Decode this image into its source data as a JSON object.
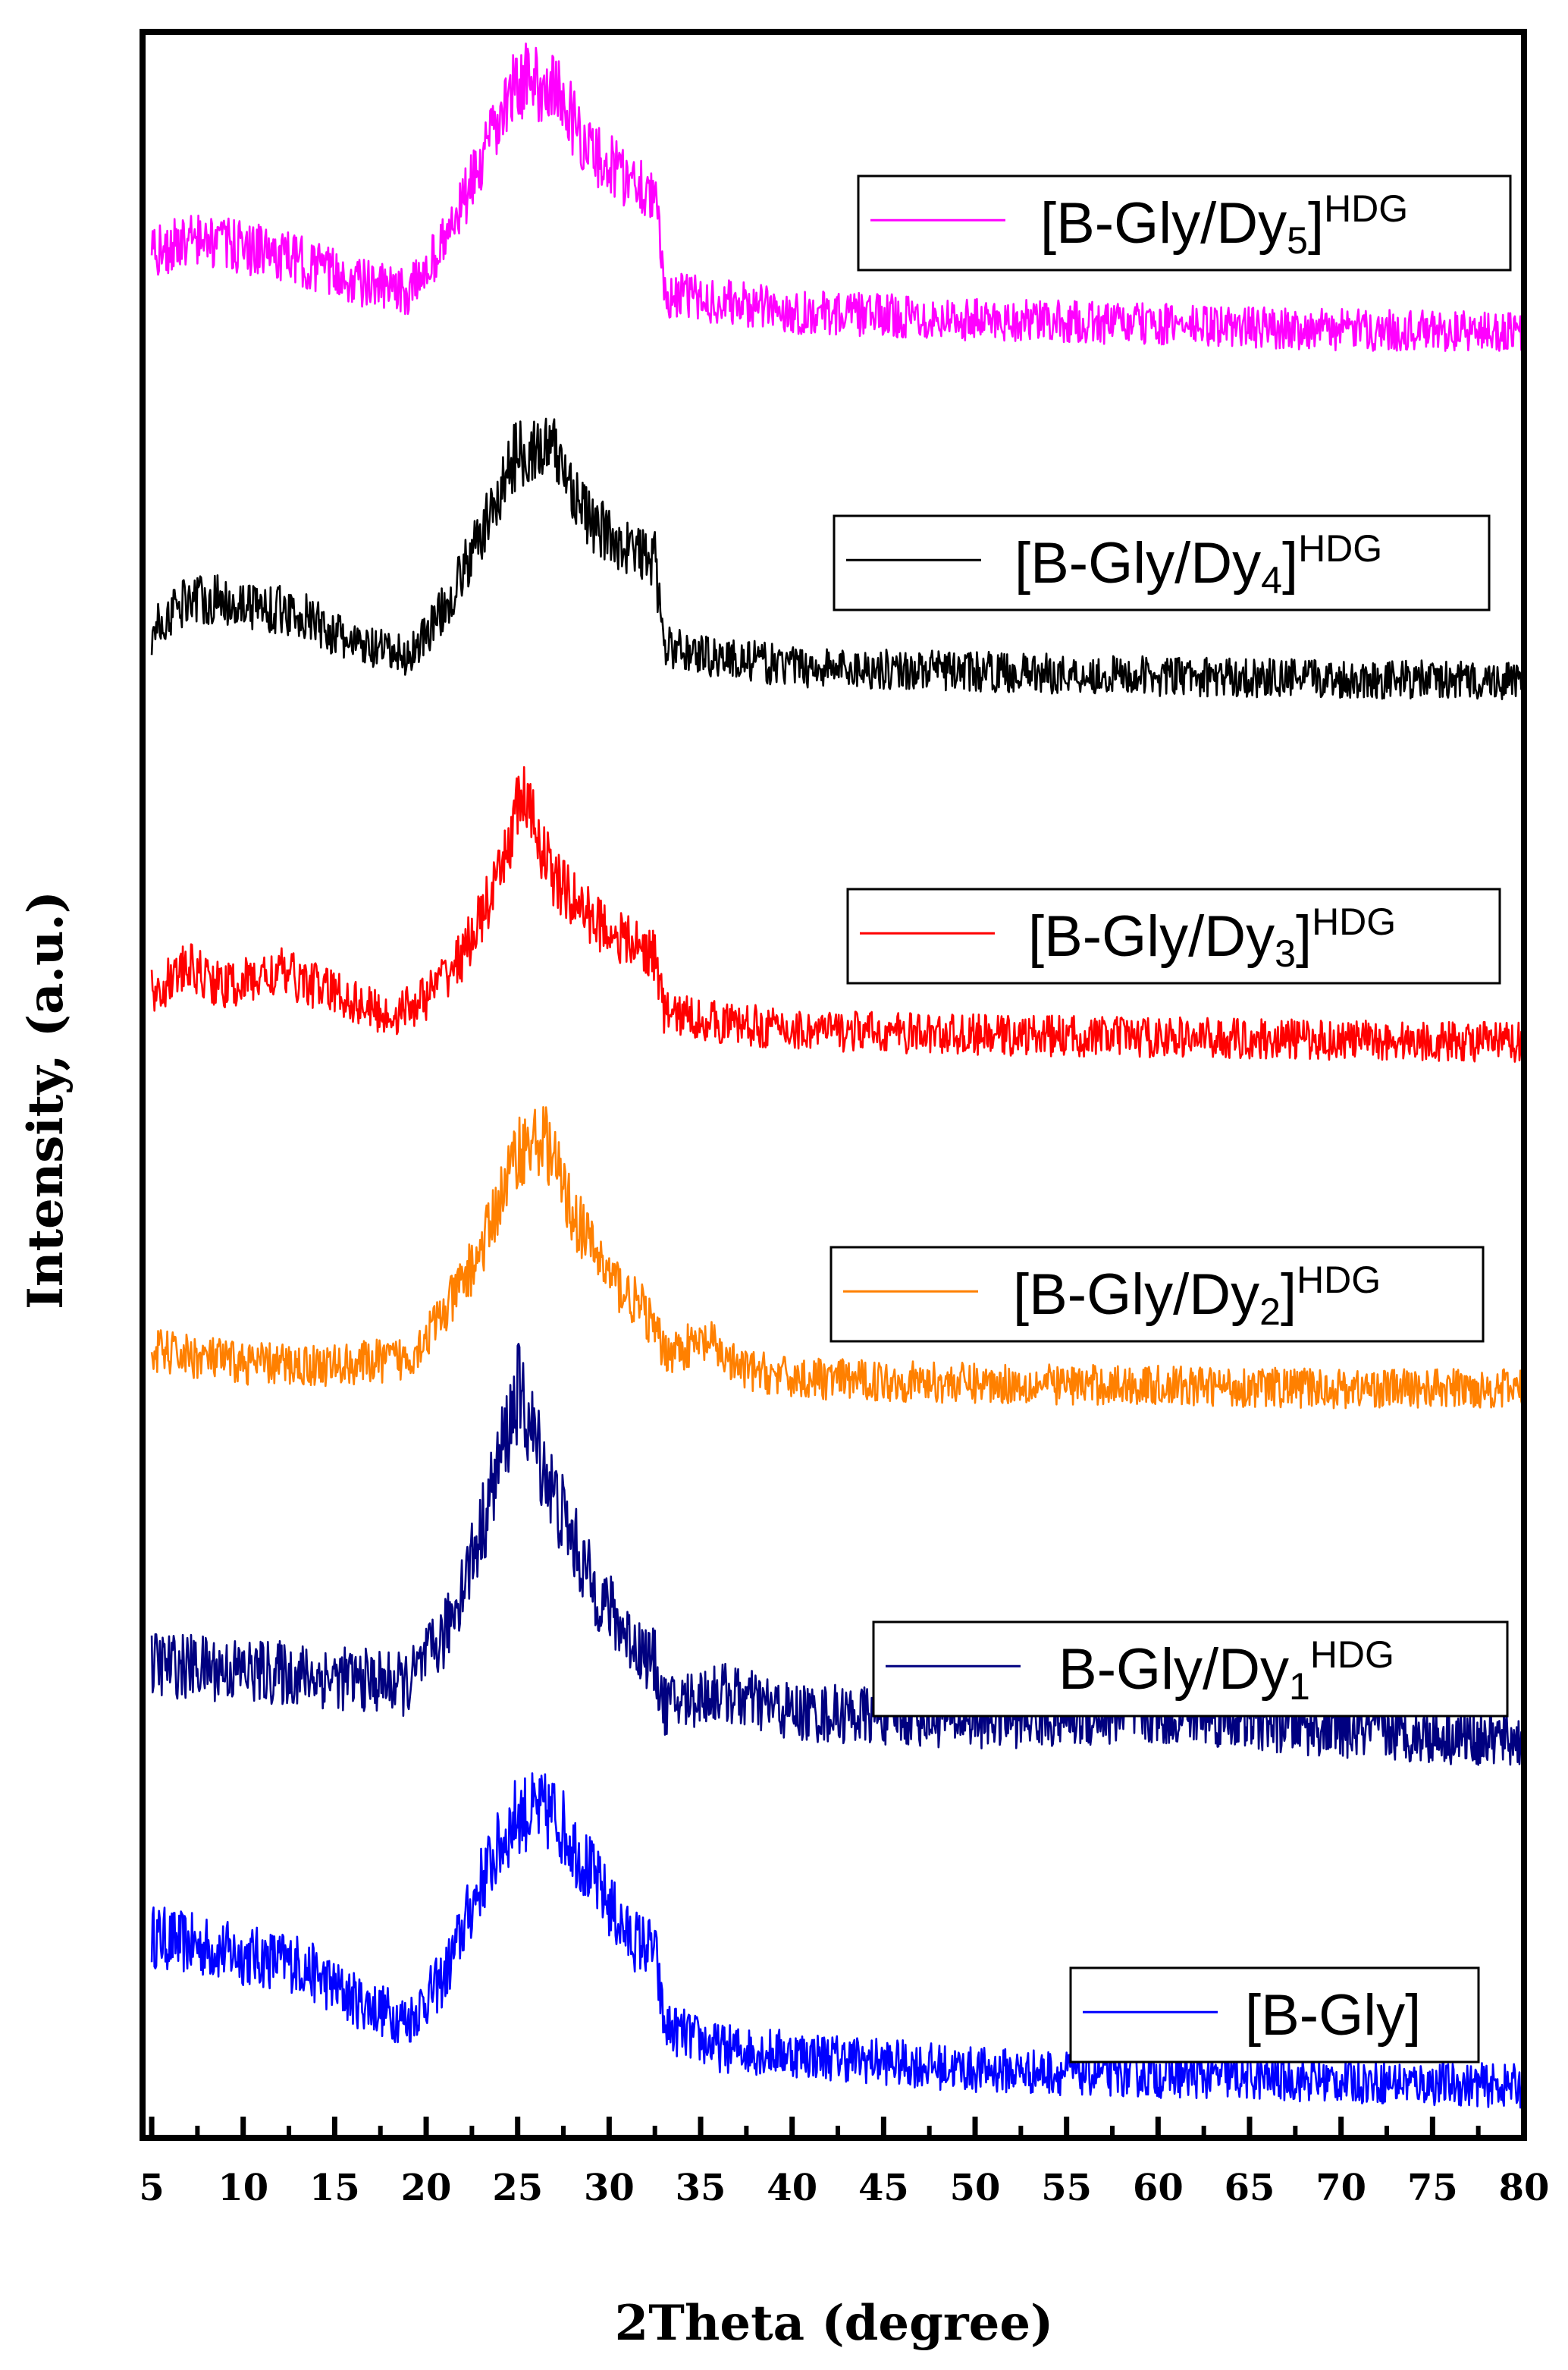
{
  "chart_data": {
    "type": "line",
    "xlabel": "2Theta (degree)",
    "ylabel": "Intensity, (a.u.)",
    "xlim": [
      4.5,
      80
    ],
    "x_ticks": [
      5,
      10,
      15,
      20,
      25,
      30,
      35,
      40,
      45,
      50,
      55,
      60,
      65,
      70,
      75,
      80
    ],
    "x_tick_labels": [
      "5",
      "10",
      "15",
      "20",
      "25",
      "30",
      "35",
      "40",
      "45",
      "50",
      "55",
      "60",
      "65",
      "70",
      "75",
      "80"
    ],
    "y_ticks_shown": false,
    "grid": false,
    "stacking": "vertically offset, stacked from bottom to top",
    "series": [
      {
        "legend_base": "[B-Gly]",
        "legend_sub": "",
        "legend_sup": "",
        "legend_close": "",
        "color": "#0000ff",
        "profile": [
          [
            5,
            0.55
          ],
          [
            10,
            0.48
          ],
          [
            13,
            0.45
          ],
          [
            16,
            0.32
          ],
          [
            19,
            0.24
          ],
          [
            21,
            0.4
          ],
          [
            23,
            0.75
          ],
          [
            25,
            1.0
          ],
          [
            27,
            1.0
          ],
          [
            29,
            0.78
          ],
          [
            31,
            0.55
          ],
          [
            32.5,
            0.5
          ],
          [
            33,
            0.22
          ],
          [
            36,
            0.14
          ],
          [
            40,
            0.12
          ],
          [
            50,
            0.06
          ],
          [
            60,
            0.04
          ],
          [
            70,
            0.02
          ],
          [
            80,
            0.0
          ]
        ]
      },
      {
        "legend_base": "B-Gly/Dy",
        "legend_sub": "1",
        "legend_sup": "HDG",
        "legend_close": "",
        "color": "#000080",
        "profile": [
          [
            5,
            0.22
          ],
          [
            10,
            0.2
          ],
          [
            15,
            0.18
          ],
          [
            19,
            0.16
          ],
          [
            21,
            0.3
          ],
          [
            23,
            0.6
          ],
          [
            25,
            1.0
          ],
          [
            27,
            0.7
          ],
          [
            29,
            0.45
          ],
          [
            31,
            0.3
          ],
          [
            32.5,
            0.22
          ],
          [
            33,
            0.1
          ],
          [
            36,
            0.14
          ],
          [
            40,
            0.08
          ],
          [
            50,
            0.06
          ],
          [
            62,
            0.07
          ],
          [
            70,
            0.03
          ],
          [
            80,
            0.0
          ]
        ]
      },
      {
        "legend_base": "[B-Gly/Dy",
        "legend_sub": "2",
        "legend_sup": "HDG",
        "legend_close": "]",
        "color": "#ff8000",
        "profile": [
          [
            5,
            0.15
          ],
          [
            10,
            0.1
          ],
          [
            15,
            0.09
          ],
          [
            19,
            0.12
          ],
          [
            21,
            0.3
          ],
          [
            23,
            0.55
          ],
          [
            25,
            0.95
          ],
          [
            26.5,
            1.0
          ],
          [
            28,
            0.7
          ],
          [
            30,
            0.45
          ],
          [
            32,
            0.3
          ],
          [
            33,
            0.15
          ],
          [
            35.5,
            0.18
          ],
          [
            37,
            0.08
          ],
          [
            40,
            0.04
          ],
          [
            50,
            0.02
          ],
          [
            60,
            0.01
          ],
          [
            70,
            0.0
          ],
          [
            80,
            0.0
          ]
        ]
      },
      {
        "legend_base": "[B-Gly/Dy",
        "legend_sub": "3",
        "legend_sup": "HDG",
        "legend_close": "]",
        "color": "#ff0000",
        "profile": [
          [
            5,
            0.2
          ],
          [
            7,
            0.3
          ],
          [
            9,
            0.22
          ],
          [
            12,
            0.28
          ],
          [
            15,
            0.2
          ],
          [
            18,
            0.1
          ],
          [
            20,
            0.18
          ],
          [
            22,
            0.35
          ],
          [
            24,
            0.65
          ],
          [
            25.2,
            1.0
          ],
          [
            27,
            0.65
          ],
          [
            29,
            0.5
          ],
          [
            31,
            0.4
          ],
          [
            32.5,
            0.35
          ],
          [
            33,
            0.12
          ],
          [
            36,
            0.08
          ],
          [
            40,
            0.05
          ],
          [
            50,
            0.03
          ],
          [
            60,
            0.02
          ],
          [
            70,
            0.01
          ],
          [
            80,
            0.0
          ]
        ]
      },
      {
        "legend_base": "[B-Gly/Dy",
        "legend_sub": "4",
        "legend_sup": "HDG",
        "legend_close": "]",
        "color": "#000000",
        "profile": [
          [
            5,
            0.2
          ],
          [
            7,
            0.35
          ],
          [
            10,
            0.32
          ],
          [
            13,
            0.28
          ],
          [
            16,
            0.15
          ],
          [
            19,
            0.1
          ],
          [
            21,
            0.3
          ],
          [
            23,
            0.6
          ],
          [
            25,
            0.95
          ],
          [
            27,
            0.95
          ],
          [
            29,
            0.65
          ],
          [
            31,
            0.55
          ],
          [
            32.5,
            0.5
          ],
          [
            33,
            0.14
          ],
          [
            36,
            0.1
          ],
          [
            40,
            0.06
          ],
          [
            50,
            0.04
          ],
          [
            60,
            0.02
          ],
          [
            70,
            0.01
          ],
          [
            80,
            0.0
          ]
        ]
      },
      {
        "legend_base": "[B-Gly/Dy",
        "legend_sub": "5",
        "legend_sup": "HDG",
        "legend_close": "]",
        "color": "#ff00ff",
        "profile": [
          [
            5,
            0.3
          ],
          [
            7,
            0.36
          ],
          [
            10,
            0.33
          ],
          [
            13,
            0.28
          ],
          [
            16,
            0.2
          ],
          [
            19,
            0.15
          ],
          [
            21,
            0.35
          ],
          [
            23,
            0.65
          ],
          [
            25,
            0.98
          ],
          [
            27,
            0.95
          ],
          [
            29,
            0.7
          ],
          [
            31,
            0.6
          ],
          [
            32.5,
            0.55
          ],
          [
            33,
            0.15
          ],
          [
            36,
            0.12
          ],
          [
            40,
            0.08
          ],
          [
            50,
            0.05
          ],
          [
            60,
            0.03
          ],
          [
            70,
            0.01
          ],
          [
            80,
            0.0
          ]
        ]
      }
    ]
  }
}
